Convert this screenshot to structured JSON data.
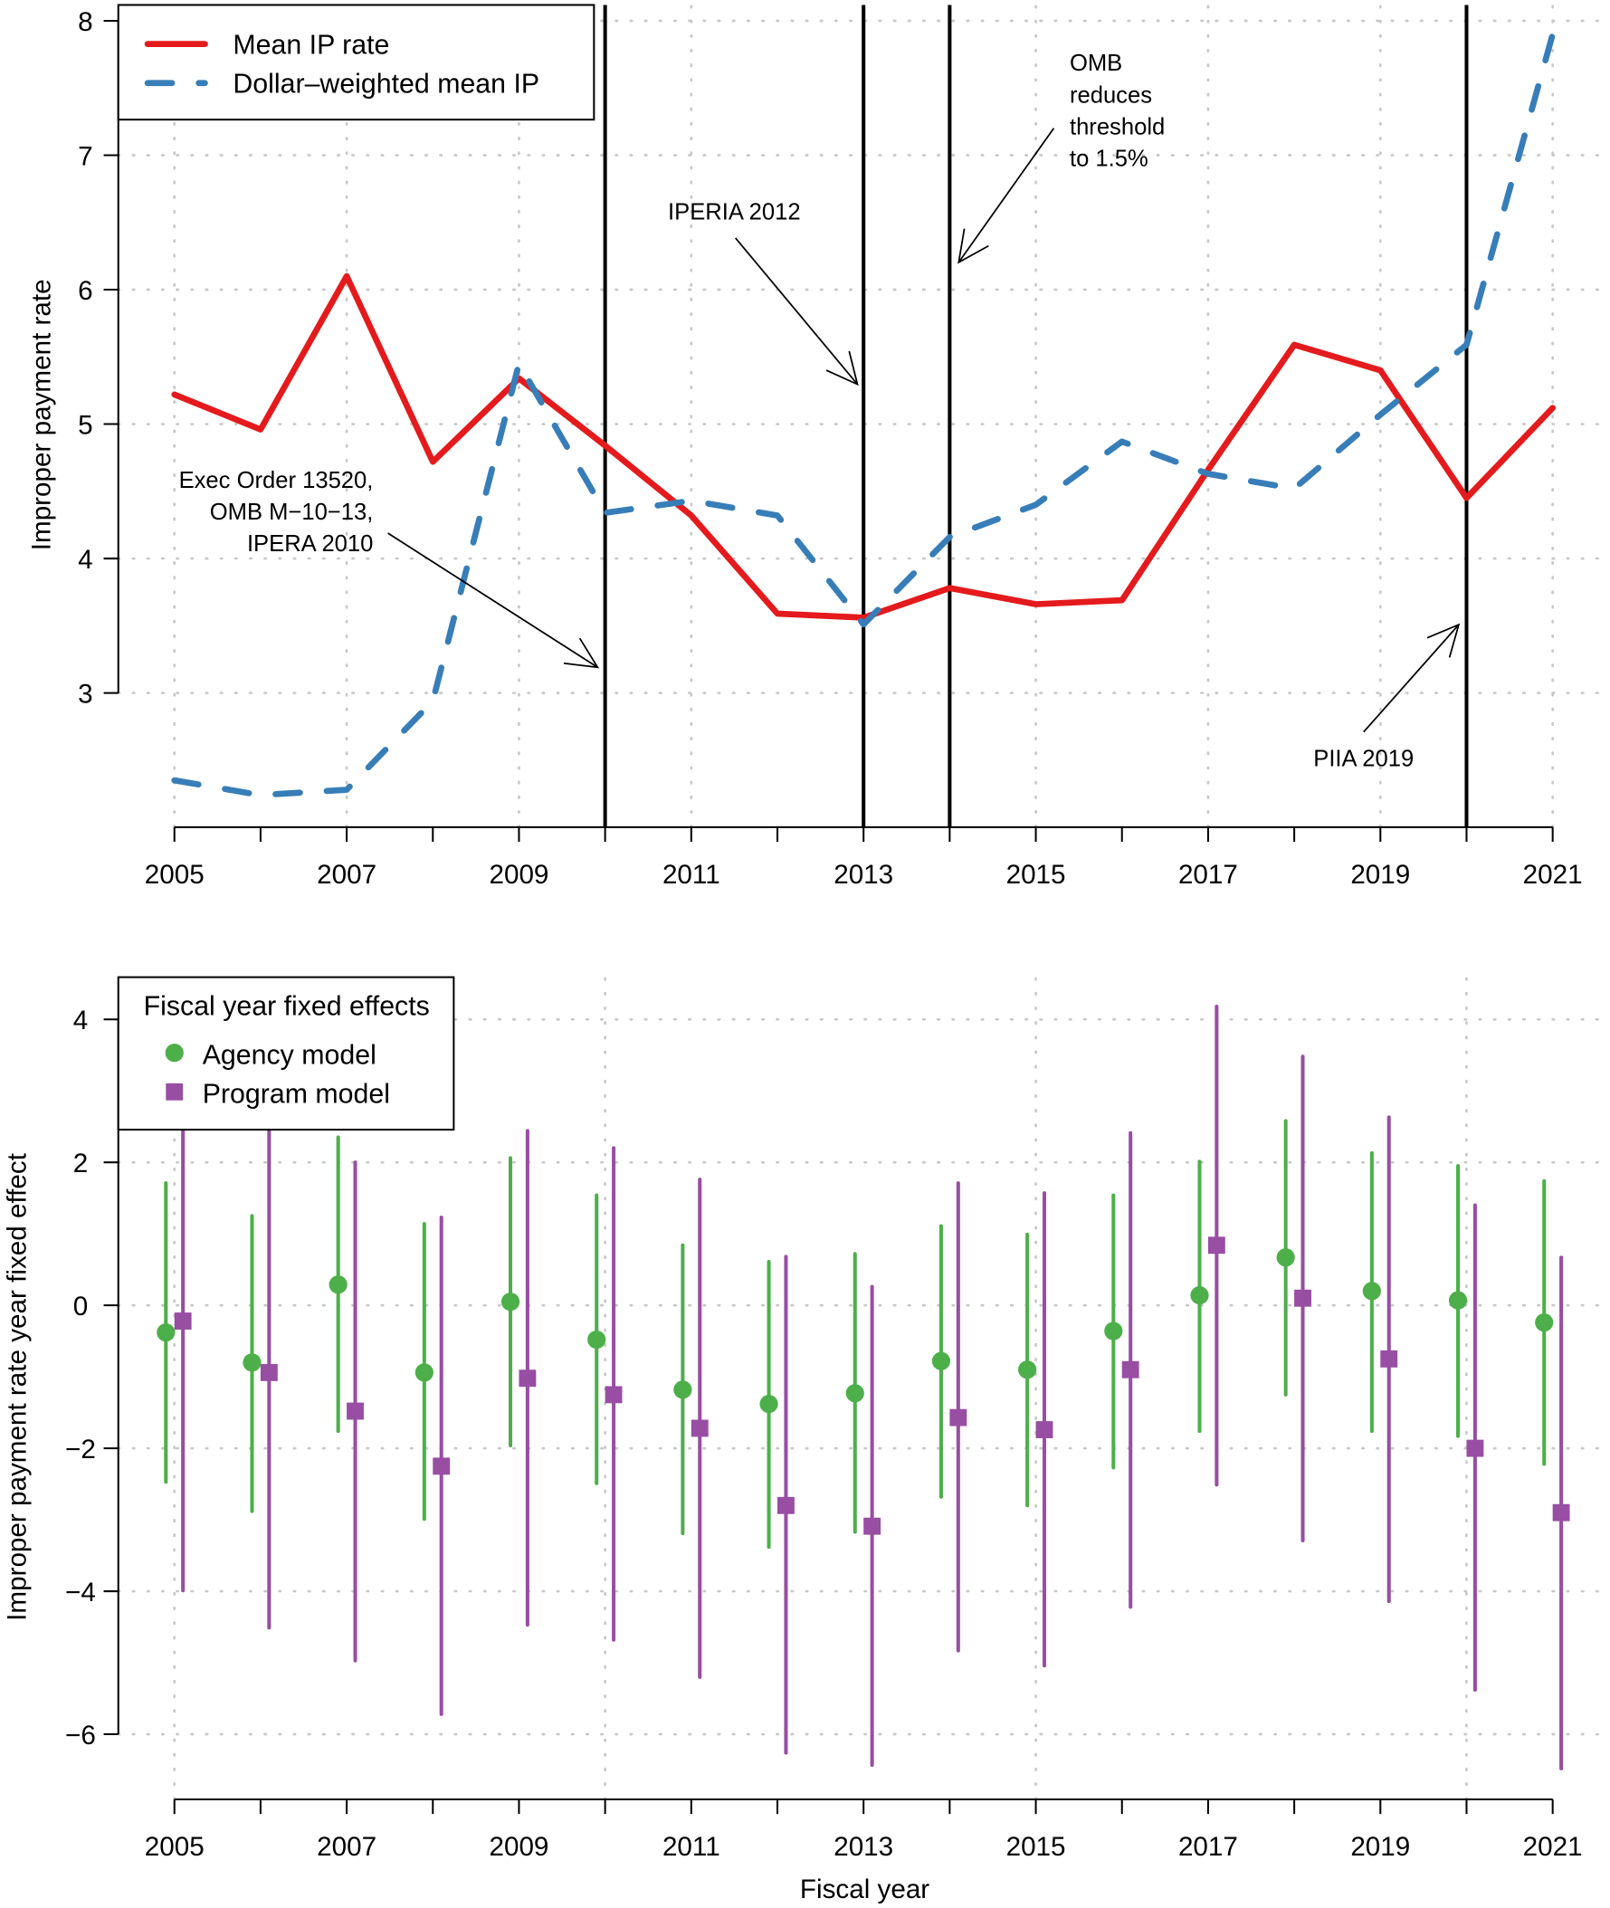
{
  "chart_data": [
    {
      "type": "line",
      "ylabel": "Improper payment rate",
      "xlabel": "",
      "x": [
        2005,
        2006,
        2007,
        2008,
        2009,
        2010,
        2011,
        2012,
        2013,
        2014,
        2015,
        2016,
        2017,
        2018,
        2019,
        2020,
        2021
      ],
      "xticks": [
        "2005",
        "2007",
        "2009",
        "2011",
        "2013",
        "2015",
        "2017",
        "2019",
        "2021"
      ],
      "yticks": [
        "3",
        "4",
        "5",
        "6",
        "7",
        "8"
      ],
      "xlim": [
        2005,
        2021
      ],
      "ylim": [
        2.0,
        8.1
      ],
      "grid": true,
      "legend_placement": "top-left",
      "series": [
        {
          "name": "Mean IP rate",
          "color": "#e41a1c",
          "style": "solid",
          "values": [
            5.22,
            4.96,
            6.1,
            4.72,
            5.34,
            4.84,
            4.32,
            3.59,
            3.56,
            3.78,
            3.66,
            3.69,
            4.66,
            5.59,
            5.4,
            4.45,
            5.12
          ]
        },
        {
          "name": "Dollar–weighted mean IP",
          "color": "#377eb8",
          "style": "dashed",
          "values": [
            2.35,
            2.24,
            2.28,
            2.94,
            5.45,
            4.34,
            4.43,
            4.32,
            3.51,
            4.16,
            4.4,
            4.87,
            4.63,
            4.52,
            5.07,
            5.59,
            7.9
          ]
        }
      ],
      "vlines": [
        2010,
        2013,
        2014,
        2020
      ],
      "annotations": [
        {
          "lines": [
            "Exec Order 13520,",
            "OMB M−10−13,",
            "IPERA 2010"
          ],
          "points_to": 2010
        },
        {
          "lines": [
            "IPERIA 2012"
          ],
          "points_to": 2013
        },
        {
          "lines": [
            "OMB",
            "reduces",
            "threshold",
            "to 1.5%"
          ],
          "points_to": 2014
        },
        {
          "lines": [
            "PIIA 2019"
          ],
          "points_to": 2020
        }
      ]
    },
    {
      "type": "scatter",
      "ylabel": "Improper payment rate year fixed effect",
      "xlabel": "Fiscal year",
      "x": [
        2005,
        2006,
        2007,
        2008,
        2009,
        2010,
        2011,
        2012,
        2013,
        2014,
        2015,
        2016,
        2017,
        2018,
        2019,
        2020,
        2021
      ],
      "xticks": [
        "2005",
        "2007",
        "2009",
        "2011",
        "2013",
        "2015",
        "2017",
        "2019",
        "2021"
      ],
      "yticks": [
        "−6",
        "−4",
        "−2",
        "0",
        "2",
        "4"
      ],
      "xlim": [
        2005,
        2021
      ],
      "ylim": [
        -6.9,
        4.5
      ],
      "grid": true,
      "legend_title": "Fiscal year fixed effects",
      "legend_placement": "top-left",
      "series": [
        {
          "name": "Agency model",
          "color": "#4daf4a",
          "marker": "circle",
          "values": [
            -0.38,
            -0.8,
            0.29,
            -0.94,
            0.05,
            -0.48,
            -1.18,
            -1.38,
            -1.23,
            -0.78,
            -0.9,
            -0.36,
            0.14,
            0.67,
            0.2,
            0.07,
            -0.24
          ],
          "upper": [
            1.71,
            1.25,
            2.35,
            1.14,
            2.06,
            1.54,
            0.84,
            0.61,
            0.72,
            1.11,
            0.99,
            1.54,
            2.01,
            2.58,
            2.13,
            1.95,
            1.74
          ],
          "lower": [
            -2.47,
            -2.88,
            -1.76,
            -2.99,
            -1.96,
            -2.49,
            -3.19,
            -3.38,
            -3.17,
            -2.68,
            -2.8,
            -2.27,
            -1.76,
            -1.25,
            -1.76,
            -1.83,
            -2.22
          ]
        },
        {
          "name": "Program model",
          "color": "#984ea3",
          "marker": "square",
          "values": [
            -0.22,
            -0.94,
            -1.48,
            -2.25,
            -1.02,
            -1.25,
            -1.72,
            -2.8,
            -3.09,
            -1.57,
            -1.74,
            -0.9,
            0.84,
            0.1,
            -0.75,
            -2.0,
            -2.9
          ],
          "upper": [
            2.6,
            2.9,
            2.0,
            1.23,
            2.44,
            2.2,
            1.76,
            0.68,
            0.26,
            1.71,
            1.57,
            2.41,
            4.18,
            3.48,
            2.63,
            1.4,
            0.67
          ],
          "lower": [
            -3.99,
            -4.51,
            -4.97,
            -5.72,
            -4.47,
            -4.68,
            -5.2,
            -6.26,
            -6.43,
            -4.83,
            -5.04,
            -4.22,
            -2.51,
            -3.29,
            -4.14,
            -5.38,
            -6.48
          ]
        }
      ]
    }
  ]
}
